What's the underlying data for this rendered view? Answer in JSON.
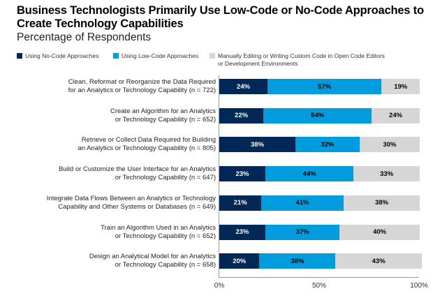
{
  "title": "Business Technologists Primarily Use Low-Code or No-Code Approaches to Create Technology Capabilities",
  "subtitle": "Percentage of Respondents",
  "chart_data": {
    "type": "bar",
    "orientation": "horizontal",
    "stacked": true,
    "categories": [
      "Clean, Reformat or Reorganize the Data Required for an Analytics or Technology Capability (n = 722)",
      "Create an Algorithm for an Analytics or Technology Capability (n = 652)",
      "Retrieve or Collect Data Required for Building an Analytics or Technology Capability (n = 805)",
      "Build or Customize the User Interface for an Analytics or Technology Capability (n = 647)",
      "Integrate Data Flows Between an Analytics or Technology Capability and Other Systems or Databases (n = 649)",
      "Train an Algorithm Used in an Analytics or Technology Capability (n = 652)",
      "Design an Analytical Model for an Analytics or Technology Capability (n = 658)"
    ],
    "category_lines": [
      [
        "Clean, Reformat or Reorganize the Data Required",
        "for an Analytics or Technology Capability (n = 722)"
      ],
      [
        "Create an Algorithm for an Analytics",
        "or Technology Capability (n = 652)"
      ],
      [
        "Retrieve or Collect Data Required for Building",
        "an Analytics or Technology Capability (n = 805)"
      ],
      [
        "Build or Customize the User Interface for an Analytics",
        "or Technology Capability (n = 647)"
      ],
      [
        "Integrate Data Flows Between an Analytics or Technology",
        "Capability and Other Systems or Databases (n = 649)"
      ],
      [
        "Train an Algorithm Used in an Analytics",
        "or Technology Capability (n = 652)"
      ],
      [
        "Design an Analytical Model for an Analytics",
        "or Technology Capability (n = 658)"
      ]
    ],
    "series": [
      {
        "name": "Using No-Code Approaches",
        "color": "#002856",
        "text_color": "#ffffff",
        "values": [
          24,
          22,
          38,
          23,
          21,
          23,
          20
        ]
      },
      {
        "name": "Using Low-Code Approaches",
        "color": "#009cde",
        "text_color": "#000000",
        "values": [
          57,
          54,
          32,
          44,
          41,
          37,
          38
        ]
      },
      {
        "name": "Manually Editing or Writing Custom Code in Open Code Editors or Development Environments",
        "name_lines": [
          "Manually Editing or Writing Custom Code in Open Code Editors",
          "or Development Environments"
        ],
        "color": "#d6d6d6",
        "text_color": "#000000",
        "values": [
          19,
          24,
          30,
          33,
          38,
          40,
          43
        ]
      }
    ],
    "xlim": [
      0,
      100
    ],
    "xticks": [
      "0%",
      "50%",
      "100%"
    ],
    "legend": "top",
    "grid": false
  }
}
